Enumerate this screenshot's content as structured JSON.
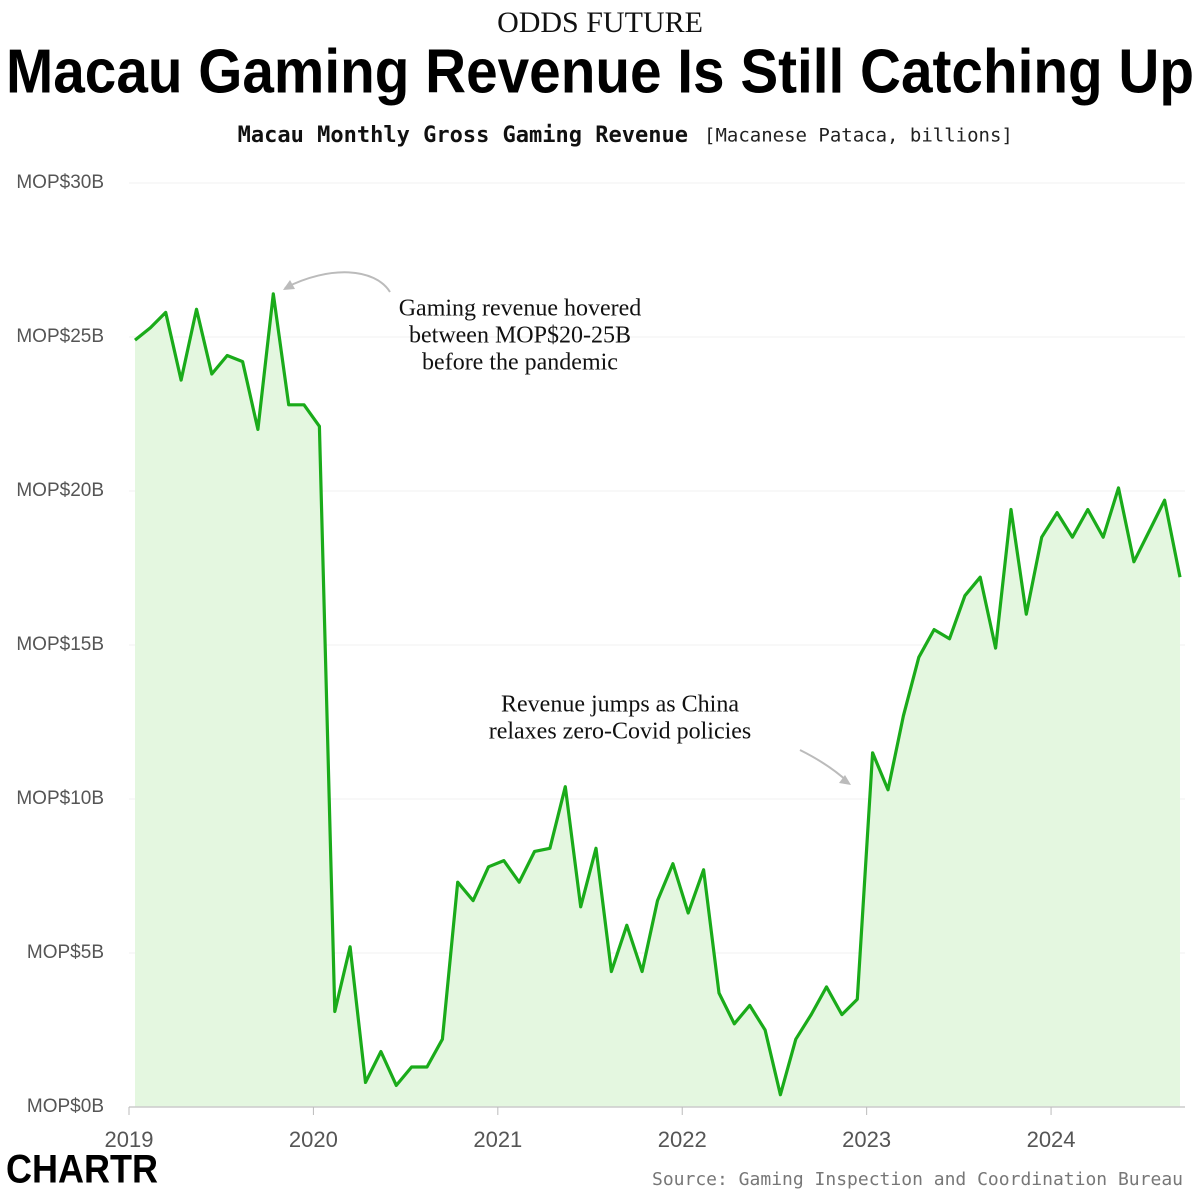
{
  "chart_data": {
    "type": "line",
    "kicker": "ODDS FUTURE",
    "title": "Macau Gaming Revenue Is Still Catching Up",
    "subtitle": "Macau Monthly Gross Gaming Revenue",
    "subtitle_unit": "[Macanese Pataca, billions]",
    "source": "Source: Gaming Inspection and Coordination Bureau",
    "logo": "CHARTR",
    "annotations": [
      [
        "Gaming revenue hovered",
        "between MOP$20-25B",
        "before the pandemic"
      ],
      [
        "Revenue jumps as China",
        "relaxes zero-Covid policies"
      ]
    ],
    "categories": [
      "2019",
      null,
      null,
      null,
      null,
      null,
      null,
      null,
      null,
      null,
      null,
      null,
      "2020",
      null,
      null,
      null,
      null,
      null,
      null,
      null,
      null,
      null,
      null,
      null,
      "2021",
      null,
      null,
      null,
      null,
      null,
      null,
      null,
      null,
      null,
      null,
      null,
      "2022",
      null,
      null,
      null,
      null,
      null,
      null,
      null,
      null,
      null,
      null,
      null,
      "2023",
      null,
      null,
      null,
      null,
      null,
      null,
      null,
      null,
      null,
      null,
      null,
      "2024",
      null,
      null,
      null,
      null,
      null,
      null,
      null,
      null
    ],
    "values": [
      24.9,
      25.3,
      25.8,
      23.6,
      25.9,
      23.8,
      24.4,
      24.2,
      22.0,
      26.4,
      22.8,
      22.8,
      22.1,
      3.1,
      5.2,
      0.8,
      1.8,
      0.7,
      1.3,
      1.3,
      2.2,
      7.3,
      6.7,
      7.8,
      8.0,
      7.3,
      8.3,
      8.4,
      10.4,
      6.5,
      8.4,
      4.4,
      5.9,
      4.4,
      6.7,
      7.9,
      6.3,
      7.7,
      3.7,
      2.7,
      3.3,
      2.5,
      0.4,
      2.2,
      3.0,
      3.9,
      3.0,
      3.5,
      11.5,
      10.3,
      12.7,
      14.6,
      15.5,
      15.2,
      16.6,
      17.2,
      14.9,
      19.4,
      16.0,
      18.5,
      19.3,
      18.5,
      19.4,
      18.5,
      20.1,
      17.7,
      18.7,
      19.7,
      17.2
    ],
    "color": "#1aab1a",
    "fill_color": "#e4f7e0",
    "ylim": [
      0,
      30
    ],
    "yticks": [
      {
        "value": 0,
        "label": "MOP$0B"
      },
      {
        "value": 5,
        "label": "MOP$5B"
      },
      {
        "value": 10,
        "label": "MOP$10B"
      },
      {
        "value": 15,
        "label": "MOP$15B"
      },
      {
        "value": 20,
        "label": "MOP$20B"
      },
      {
        "value": 25,
        "label": "MOP$25B"
      },
      {
        "value": 30,
        "label": "MOP$30B"
      }
    ],
    "grid": true
  }
}
